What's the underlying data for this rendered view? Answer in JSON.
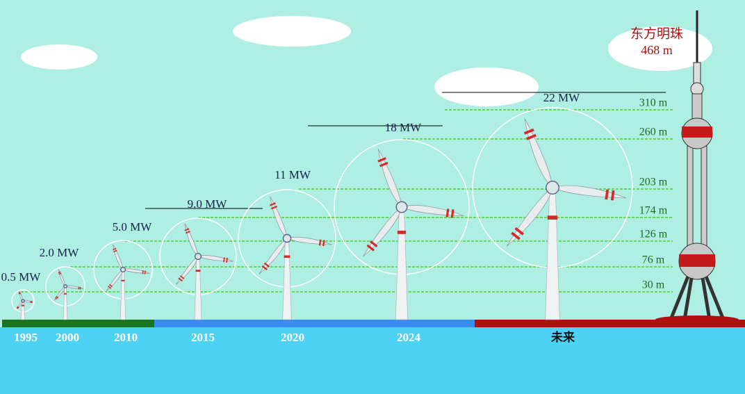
{
  "turbines": [
    {
      "year": "1995",
      "power": "0.5 MW"
    },
    {
      "year": "2000",
      "power": "2.0 MW"
    },
    {
      "year": "2010",
      "power": "5.0 MW"
    },
    {
      "year": "2015",
      "power": "9.0 MW"
    },
    {
      "year": "2020",
      "power": "11 MW"
    },
    {
      "year": "2024",
      "power": "18 MW"
    },
    {
      "year": "未来",
      "power": "22 MW"
    }
  ],
  "heights": [
    "310 m",
    "260 m",
    "203 m",
    "174 m",
    "126 m",
    "76 m",
    "30 m"
  ],
  "tower": {
    "name": "东方明珠",
    "height": "468 m"
  }
}
